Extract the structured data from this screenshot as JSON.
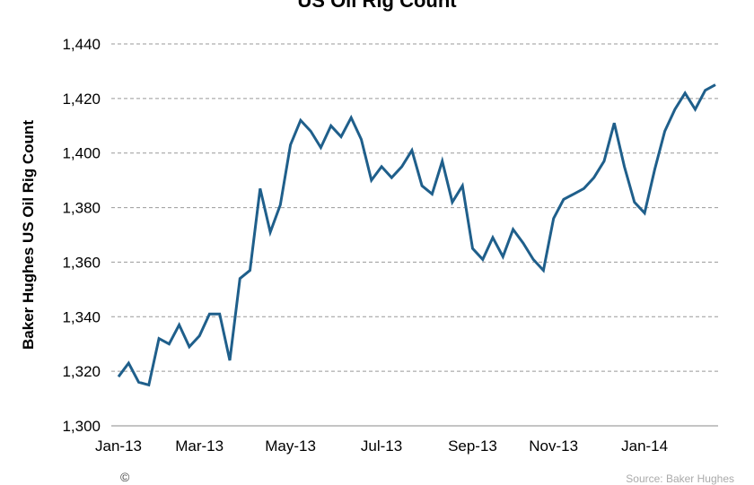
{
  "chart_data": {
    "type": "line",
    "title": "US Oil Rig Count",
    "ylabel": "Baker Hughes US Oil Rig Count",
    "xlabel": "",
    "ylim": [
      1300,
      1440
    ],
    "yticks": [
      "1,300",
      "1,320",
      "1,340",
      "1,360",
      "1,380",
      "1,400",
      "1,420",
      "1,440"
    ],
    "yticks_values": [
      1300,
      1320,
      1340,
      1360,
      1380,
      1400,
      1420,
      1440
    ],
    "xticks": [
      {
        "label": "Jan-13",
        "date": "2013-01-04"
      },
      {
        "label": "Mar-13",
        "date": "2013-03-01"
      },
      {
        "label": "May-13",
        "date": "2013-05-03"
      },
      {
        "label": "Jul-13",
        "date": "2013-07-05"
      },
      {
        "label": "Sep-13",
        "date": "2013-09-06"
      },
      {
        "label": "Nov-13",
        "date": "2013-11-01"
      },
      {
        "label": "Jan-14",
        "date": "2014-01-03"
      }
    ],
    "grid": "horizontal dashed",
    "line_color": "#1f5f8b",
    "x": [
      "2013-01-04",
      "2013-01-11",
      "2013-01-18",
      "2013-01-25",
      "2013-02-01",
      "2013-02-08",
      "2013-02-15",
      "2013-02-22",
      "2013-03-01",
      "2013-03-08",
      "2013-03-15",
      "2013-03-22",
      "2013-03-29",
      "2013-04-05",
      "2013-04-12",
      "2013-04-19",
      "2013-04-26",
      "2013-05-03",
      "2013-05-10",
      "2013-05-17",
      "2013-05-24",
      "2013-05-31",
      "2013-06-07",
      "2013-06-14",
      "2013-06-21",
      "2013-06-28",
      "2013-07-05",
      "2013-07-12",
      "2013-07-19",
      "2013-07-26",
      "2013-08-02",
      "2013-08-09",
      "2013-08-16",
      "2013-08-23",
      "2013-08-30",
      "2013-09-06",
      "2013-09-13",
      "2013-09-20",
      "2013-09-27",
      "2013-10-04",
      "2013-10-11",
      "2013-10-18",
      "2013-10-25",
      "2013-11-01",
      "2013-11-08",
      "2013-11-15",
      "2013-11-22",
      "2013-11-29",
      "2013-12-06",
      "2013-12-13",
      "2013-12-20",
      "2013-12-27",
      "2014-01-03",
      "2014-01-10",
      "2014-01-17",
      "2014-01-24",
      "2014-01-31",
      "2014-02-07",
      "2014-02-14",
      "2014-02-21"
    ],
    "values": [
      1318,
      1323,
      1316,
      1315,
      1332,
      1330,
      1337,
      1329,
      1333,
      1341,
      1341,
      1324,
      1354,
      1357,
      1387,
      1371,
      1381,
      1403,
      1412,
      1408,
      1402,
      1410,
      1406,
      1413,
      1405,
      1390,
      1395,
      1391,
      1395,
      1401,
      1388,
      1385,
      1397,
      1382,
      1388,
      1365,
      1361,
      1369,
      1362,
      1372,
      1367,
      1361,
      1357,
      1376,
      1383,
      1385,
      1387,
      1391,
      1397,
      1411,
      1395,
      1382,
      1378,
      1394,
      1408,
      1416,
      1422,
      1416,
      1423,
      1425
    ]
  },
  "footer": {
    "copyright_icon": "©",
    "source": "Source: Baker Hughes"
  }
}
